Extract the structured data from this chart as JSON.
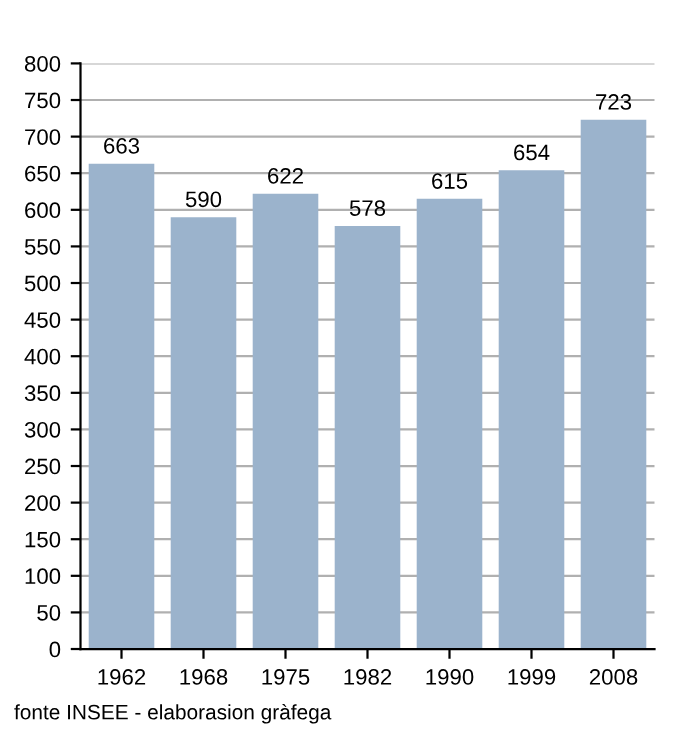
{
  "chart_data": {
    "type": "bar",
    "categories": [
      "1962",
      "1968",
      "1975",
      "1982",
      "1990",
      "1999",
      "2008"
    ],
    "values": [
      663,
      590,
      622,
      578,
      615,
      654,
      723
    ],
    "color": "#9bb3cc",
    "data_labels": true,
    "ylim": [
      0,
      800
    ],
    "yticks": [
      0,
      50,
      100,
      150,
      200,
      250,
      300,
      350,
      400,
      450,
      500,
      550,
      600,
      650,
      700,
      750,
      800
    ],
    "grid": "y",
    "annotations": [
      "fonte INSEE - elaborasion gràfega"
    ]
  }
}
